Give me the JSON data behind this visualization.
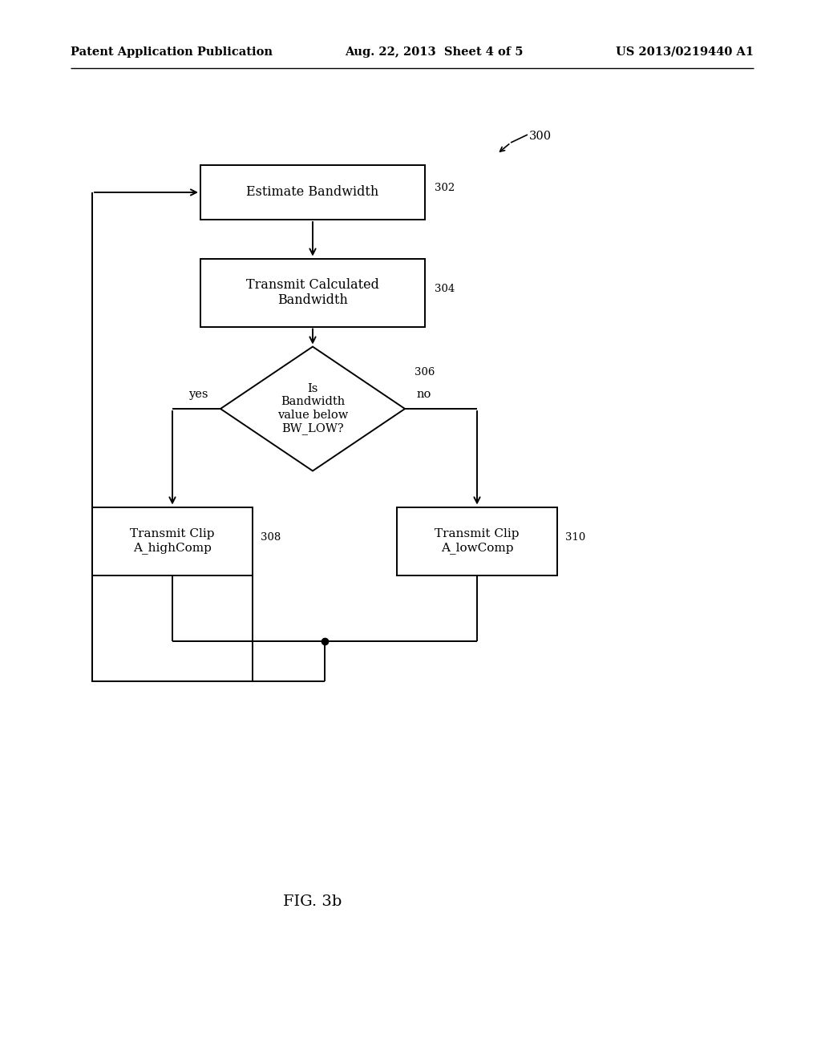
{
  "bg_color": "#ffffff",
  "header_left": "Patent Application Publication",
  "header_mid": "Aug. 22, 2013  Sheet 4 of 5",
  "header_right": "US 2013/0219440 A1",
  "fig_label": "FIG. 3b",
  "ref_300": "300",
  "ref_302": "302",
  "ref_304": "304",
  "ref_306": "306",
  "ref_308": "308",
  "ref_310": "310",
  "box_302_text": "Estimate Bandwidth",
  "box_304_text": "Transmit Calculated\nBandwidth",
  "diamond_306_text": "Is\nBandwidth\nvalue below\nBW_LOW?",
  "box_308_text": "Transmit Clip\nA_highComp",
  "box_310_text": "Transmit Clip\nA_lowComp",
  "yes_label": "yes",
  "no_label": "no",
  "line_color": "#000000",
  "text_color": "#000000",
  "font_size_header": 10.5,
  "font_size_box": 11.5,
  "font_size_label": 10.5,
  "font_size_ref": 9.5,
  "font_size_fig": 14
}
